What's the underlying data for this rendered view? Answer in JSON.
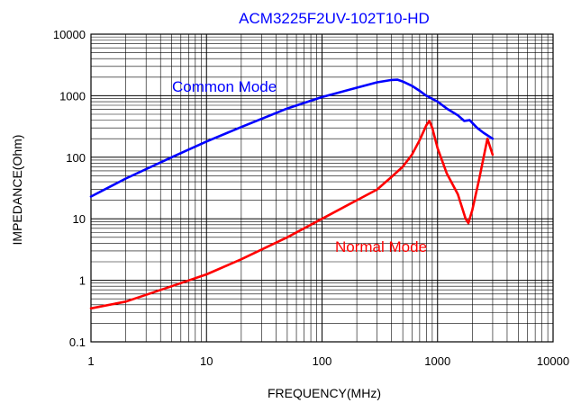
{
  "chart_data": {
    "type": "line",
    "title": "ACM3225F2UV-102T10-HD",
    "xlabel": "FREQUENCY(MHz)",
    "ylabel": "IMPEDANCE(Ohm)",
    "xscale": "log",
    "yscale": "log",
    "xlim": [
      1,
      10000
    ],
    "ylim": [
      0.1,
      10000
    ],
    "x_ticks": [
      1,
      10,
      100,
      1000,
      10000
    ],
    "x_tick_labels": [
      "1",
      "10",
      "100",
      "1000",
      "10000"
    ],
    "y_ticks": [
      0.1,
      1,
      10,
      100,
      1000,
      10000
    ],
    "y_tick_labels": [
      "0.1",
      "1",
      "10",
      "100",
      "1000",
      "10000"
    ],
    "grid": true,
    "legend": "inline annotations",
    "series": [
      {
        "name": "Common Mode",
        "color": "#0000ff",
        "x": [
          1,
          2,
          5,
          10,
          20,
          50,
          100,
          200,
          300,
          400,
          450,
          500,
          600,
          700,
          800,
          1000,
          1200,
          1500,
          1700,
          1900,
          2000,
          2200,
          2500,
          3000
        ],
        "y": [
          23,
          45,
          100,
          180,
          310,
          620,
          950,
          1350,
          1650,
          1800,
          1820,
          1700,
          1450,
          1200,
          1000,
          800,
          620,
          480,
          390,
          400,
          360,
          300,
          250,
          200
        ]
      },
      {
        "name": "Normal Mode",
        "color": "#ff0000",
        "x": [
          1,
          2,
          5,
          10,
          20,
          50,
          100,
          200,
          300,
          400,
          500,
          600,
          700,
          800,
          850,
          900,
          1000,
          1200,
          1500,
          1750,
          1850,
          2000,
          2300,
          2700,
          3000
        ],
        "y": [
          0.35,
          0.45,
          0.8,
          1.25,
          2.2,
          5,
          10,
          20,
          30,
          48,
          70,
          110,
          190,
          330,
          390,
          300,
          140,
          55,
          25,
          10,
          8.5,
          14,
          45,
          200,
          110
        ]
      }
    ]
  }
}
